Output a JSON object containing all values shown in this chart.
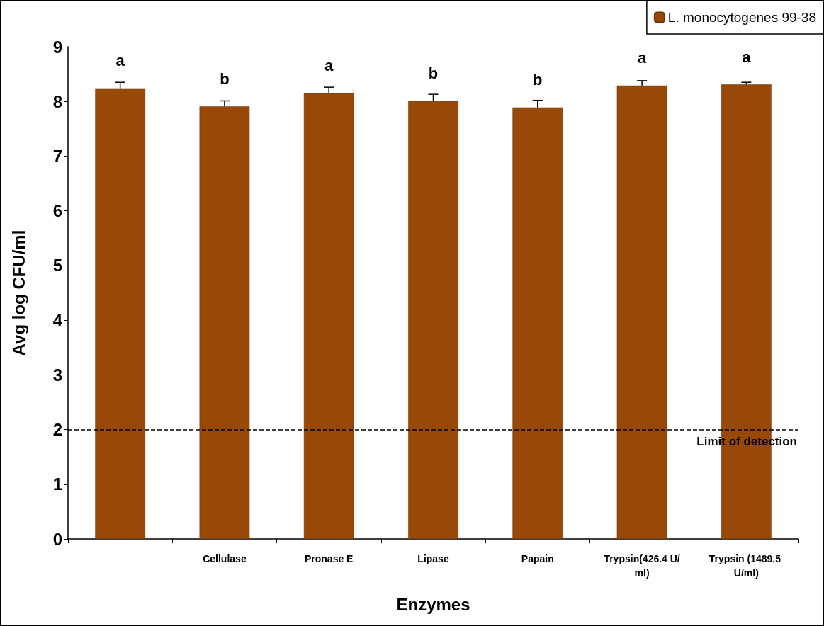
{
  "chart_data": {
    "type": "bar",
    "xlabel": "Enzymes",
    "ylabel": "Avg log CFU/ml",
    "categories": [
      null,
      "Cellulase",
      "Pronase E",
      "Lipase",
      "Papain",
      "Trypsin(426.4 U/ml)",
      "Trypsin (1489.5 U/ml)"
    ],
    "series": [
      {
        "name": "L. monocytogenes 99-38",
        "color": "#984807",
        "values": [
          8.24,
          7.91,
          8.15,
          8.01,
          7.89,
          8.29,
          8.31
        ],
        "errors": [
          [
            8.24,
            8.35
          ],
          [
            7.91,
            8.01
          ],
          [
            8.15,
            8.26
          ],
          [
            8.01,
            8.13
          ],
          [
            7.89,
            8.02
          ],
          [
            8.29,
            8.38
          ],
          [
            8.31,
            8.35
          ]
        ],
        "value_labels": [
          "a",
          "b",
          "a",
          "b",
          "b",
          "a",
          "a"
        ]
      }
    ],
    "ylim": [
      0,
      9
    ],
    "yticks": [
      0,
      1,
      2,
      3,
      4,
      5,
      6,
      7,
      8,
      9
    ],
    "grid": false,
    "legend": "top right",
    "ref_lines": [
      {
        "axis": "y",
        "value": 2,
        "label": "Limit of detection",
        "line_style": "dashed",
        "color": "#000000"
      }
    ]
  }
}
